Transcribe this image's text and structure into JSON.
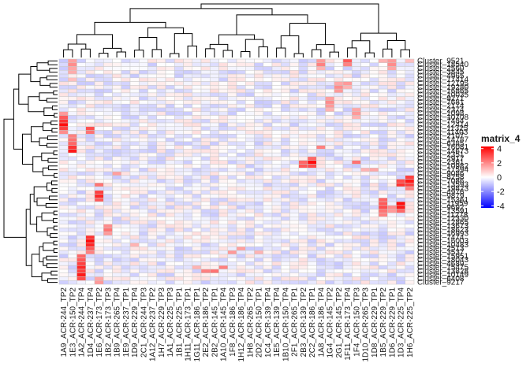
{
  "chart_data": {
    "type": "heatmap",
    "title": "",
    "xlabel": "",
    "ylabel": "",
    "columns": [
      "1A9_ACR-244_TP2",
      "1E3_ACR-150_TP2",
      "1A2_ACR-244_TP4",
      "1D4_ACR-237_TP4",
      "1E6_ACR-173_TP2",
      "1B2_ACR-173_TP3",
      "1B9_ACR-265_TP4",
      "1E9_ACR-237_TP1",
      "1D9_ACR-229_TP4",
      "2C1_ACR-244_TP3",
      "1A12_ACR-237_TP2",
      "1H7_ACR-229_TP3",
      "1A1_ACR-225_TP3",
      "1B1_ACR-225_TP1",
      "1H11_ACR-173_TP1",
      "1G11_ACR-186_TP1",
      "2E2_ACR-186_TP2",
      "2B2_ACR-145_TP1",
      "1A10_ACR-145_TP4",
      "1F8_ACR-186_TP3",
      "1H12_ACR-186_TP4",
      "1H8_ACR-265_TP2",
      "2D2_ACR-150_TP1",
      "1C4_ACR-139_TP4",
      "1E5_ACR-139_TP4",
      "1B10_ACR-150_TP4",
      "2F1_ACR-265_TP1",
      "2B3_ACR-139_TP2",
      "2C2_ACR-186_TP1",
      "1A8_ACR-186_TP4",
      "1G4_ACR-145_TP2",
      "2G1_ACR-145_TP2",
      "1F11_ACR-173_TP4",
      "1F4_ACR-150_TP3",
      "1D10_ACR-265_TP3",
      "1D8_ACR-229_TP1",
      "1B5_ACR-229_TP2",
      "1D6_ACR-229_TP1",
      "1D3_ACR-225_TP4",
      "1H6_ACR-225_TP2"
    ],
    "rows": [
      "Cluster_9521",
      "Cluster_18540",
      "Cluster_2560",
      "Cluster_3845",
      "Cluster_4965",
      "Cluster_17414",
      "Cluster_12195",
      "Cluster_19280",
      "Cluster_16865",
      "Cluster_10035",
      "Cluster_9271",
      "Cluster_7681",
      "Cluster_2174",
      "Cluster_2374",
      "Cluster_1098",
      "Cluster_10708",
      "Cluster_7484",
      "Cluster_12414",
      "Cluster_11325",
      "Cluster_11403",
      "Cluster_2107",
      "Cluster_14787",
      "Cluster_6385",
      "Cluster_16081",
      "Cluster_14673",
      "Cluster_2351",
      "Cluster_2917",
      "Cluster_2361",
      "Cluster_10982",
      "Cluster_17594",
      "Cluster_9086",
      "Cluster_8258",
      "Cluster_7086",
      "Cluster_13593",
      "Cluster_19823",
      "Cluster_4976",
      "Cluster_9879",
      "Cluster_15361",
      "Cluster_11959",
      "Cluster_9692",
      "Cluster_13591",
      "Cluster_11278",
      "Cluster_12330",
      "Cluster_12865",
      "Cluster_13673",
      "Cluster_18623",
      "Cluster_16993",
      "Cluster_7474",
      "Cluster_16003",
      "Cluster_10483",
      "Cluster_2513",
      "Cluster_3537",
      "Cluster_15951",
      "Cluster_18043",
      "Cluster_4689",
      "Cluster_15475",
      "Cluster_13828",
      "Cluster_10149",
      "Cluster_6408",
      "Cluster_9217"
    ],
    "highlights": [
      {
        "col": 1,
        "row": 0,
        "value": 1.5
      },
      {
        "col": 1,
        "row": 1,
        "value": 1.8
      },
      {
        "col": 1,
        "row": 2,
        "value": 1.4
      },
      {
        "col": 1,
        "row": 3,
        "value": 1.3
      },
      {
        "col": 1,
        "row": 5,
        "value": 1.0
      },
      {
        "col": 1,
        "row": 20,
        "value": 2.0
      },
      {
        "col": 1,
        "row": 21,
        "value": 2.2
      },
      {
        "col": 1,
        "row": 22,
        "value": 2.4
      },
      {
        "col": 1,
        "row": 23,
        "value": 3.2
      },
      {
        "col": 1,
        "row": 24,
        "value": 3.6
      },
      {
        "col": 0,
        "row": 14,
        "value": 1.6
      },
      {
        "col": 0,
        "row": 15,
        "value": 2.6
      },
      {
        "col": 0,
        "row": 16,
        "value": 3.2
      },
      {
        "col": 0,
        "row": 17,
        "value": 3.8
      },
      {
        "col": 0,
        "row": 18,
        "value": 3.0
      },
      {
        "col": 0,
        "row": 19,
        "value": 1.8
      },
      {
        "col": 3,
        "row": 18,
        "value": 2.8
      },
      {
        "col": 3,
        "row": 19,
        "value": 2.2
      },
      {
        "col": 3,
        "row": 47,
        "value": 3.2
      },
      {
        "col": 3,
        "row": 48,
        "value": 3.8
      },
      {
        "col": 3,
        "row": 49,
        "value": 3.4
      },
      {
        "col": 3,
        "row": 50,
        "value": 2.6
      },
      {
        "col": 3,
        "row": 51,
        "value": 2.0
      },
      {
        "col": 2,
        "row": 52,
        "value": 2.4
      },
      {
        "col": 2,
        "row": 53,
        "value": 2.6
      },
      {
        "col": 2,
        "row": 54,
        "value": 3.0
      },
      {
        "col": 2,
        "row": 55,
        "value": 3.4
      },
      {
        "col": 2,
        "row": 56,
        "value": 3.0
      },
      {
        "col": 2,
        "row": 57,
        "value": 3.6
      },
      {
        "col": 2,
        "row": 58,
        "value": 2.8
      },
      {
        "col": 4,
        "row": 33,
        "value": 2.2
      },
      {
        "col": 4,
        "row": 35,
        "value": 3.0
      },
      {
        "col": 4,
        "row": 36,
        "value": 3.4
      },
      {
        "col": 4,
        "row": 37,
        "value": 2.6
      },
      {
        "col": 5,
        "row": 44,
        "value": 1.8
      },
      {
        "col": 5,
        "row": 45,
        "value": 2.2
      },
      {
        "col": 5,
        "row": 46,
        "value": 1.6
      },
      {
        "col": 4,
        "row": 58,
        "value": 1.4
      },
      {
        "col": 4,
        "row": 59,
        "value": 1.6
      },
      {
        "col": 6,
        "row": 30,
        "value": 1.5
      },
      {
        "col": 8,
        "row": 49,
        "value": 1.2
      },
      {
        "col": 20,
        "row": 50,
        "value": 1.5
      },
      {
        "col": 19,
        "row": 51,
        "value": 1.6
      },
      {
        "col": 22,
        "row": 51,
        "value": 1.2
      },
      {
        "col": 18,
        "row": 55,
        "value": 2.0
      },
      {
        "col": 17,
        "row": 56,
        "value": 2.2
      },
      {
        "col": 16,
        "row": 56,
        "value": 2.0
      },
      {
        "col": 15,
        "row": 55,
        "value": 1.2
      },
      {
        "col": 27,
        "row": 27,
        "value": 2.4
      },
      {
        "col": 27,
        "row": 28,
        "value": 2.6
      },
      {
        "col": 28,
        "row": 26,
        "value": 2.4
      },
      {
        "col": 28,
        "row": 27,
        "value": 3.8
      },
      {
        "col": 28,
        "row": 28,
        "value": 2.8
      },
      {
        "col": 29,
        "row": 0,
        "value": 1.6
      },
      {
        "col": 29,
        "row": 1,
        "value": 2.0
      },
      {
        "col": 29,
        "row": 2,
        "value": 1.2
      },
      {
        "col": 29,
        "row": 23,
        "value": 2.0
      },
      {
        "col": 30,
        "row": 10,
        "value": 1.5
      },
      {
        "col": 30,
        "row": 11,
        "value": 1.8
      },
      {
        "col": 30,
        "row": 12,
        "value": 1.6
      },
      {
        "col": 30,
        "row": 13,
        "value": 1.2
      },
      {
        "col": 31,
        "row": 6,
        "value": 1.4
      },
      {
        "col": 31,
        "row": 7,
        "value": 1.8
      },
      {
        "col": 31,
        "row": 8,
        "value": 1.6
      },
      {
        "col": 32,
        "row": 0,
        "value": 2.6
      },
      {
        "col": 32,
        "row": 1,
        "value": 2.0
      },
      {
        "col": 32,
        "row": 6,
        "value": 1.6
      },
      {
        "col": 32,
        "row": 7,
        "value": 1.2
      },
      {
        "col": 33,
        "row": 13,
        "value": 1.4
      },
      {
        "col": 33,
        "row": 14,
        "value": 1.6
      },
      {
        "col": 33,
        "row": 15,
        "value": 1.2
      },
      {
        "col": 33,
        "row": 27,
        "value": 2.2
      },
      {
        "col": 34,
        "row": 29,
        "value": 1.2
      },
      {
        "col": 35,
        "row": 29,
        "value": 1.4
      },
      {
        "col": 36,
        "row": 0,
        "value": 1.2
      },
      {
        "col": 36,
        "row": 37,
        "value": 2.4
      },
      {
        "col": 36,
        "row": 38,
        "value": 2.6
      },
      {
        "col": 36,
        "row": 39,
        "value": 2.8
      },
      {
        "col": 36,
        "row": 40,
        "value": 2.2
      },
      {
        "col": 36,
        "row": 41,
        "value": 2.0
      },
      {
        "col": 37,
        "row": 0,
        "value": 1.6
      },
      {
        "col": 37,
        "row": 1,
        "value": 1.8
      },
      {
        "col": 37,
        "row": 2,
        "value": 1.4
      },
      {
        "col": 37,
        "row": 39,
        "value": 1.8
      },
      {
        "col": 37,
        "row": 40,
        "value": 1.6
      },
      {
        "col": 38,
        "row": 32,
        "value": 2.8
      },
      {
        "col": 38,
        "row": 33,
        "value": 3.2
      },
      {
        "col": 38,
        "row": 38,
        "value": 3.8
      },
      {
        "col": 38,
        "row": 39,
        "value": 3.6
      },
      {
        "col": 38,
        "row": 40,
        "value": 2.4
      },
      {
        "col": 39,
        "row": 31,
        "value": 3.0
      },
      {
        "col": 39,
        "row": 32,
        "value": 3.6
      },
      {
        "col": 39,
        "row": 33,
        "value": 3.0
      },
      {
        "col": 39,
        "row": 34,
        "value": 2.0
      },
      {
        "col": 39,
        "row": 0,
        "value": 1.0
      }
    ],
    "legend": {
      "title": "matrix_4",
      "ticks": [
        4,
        2,
        0,
        -2,
        -4
      ],
      "colors": {
        "high": "#ff0000",
        "mid": "#ffffff",
        "low": "#0000ff"
      },
      "placement": "right"
    }
  }
}
